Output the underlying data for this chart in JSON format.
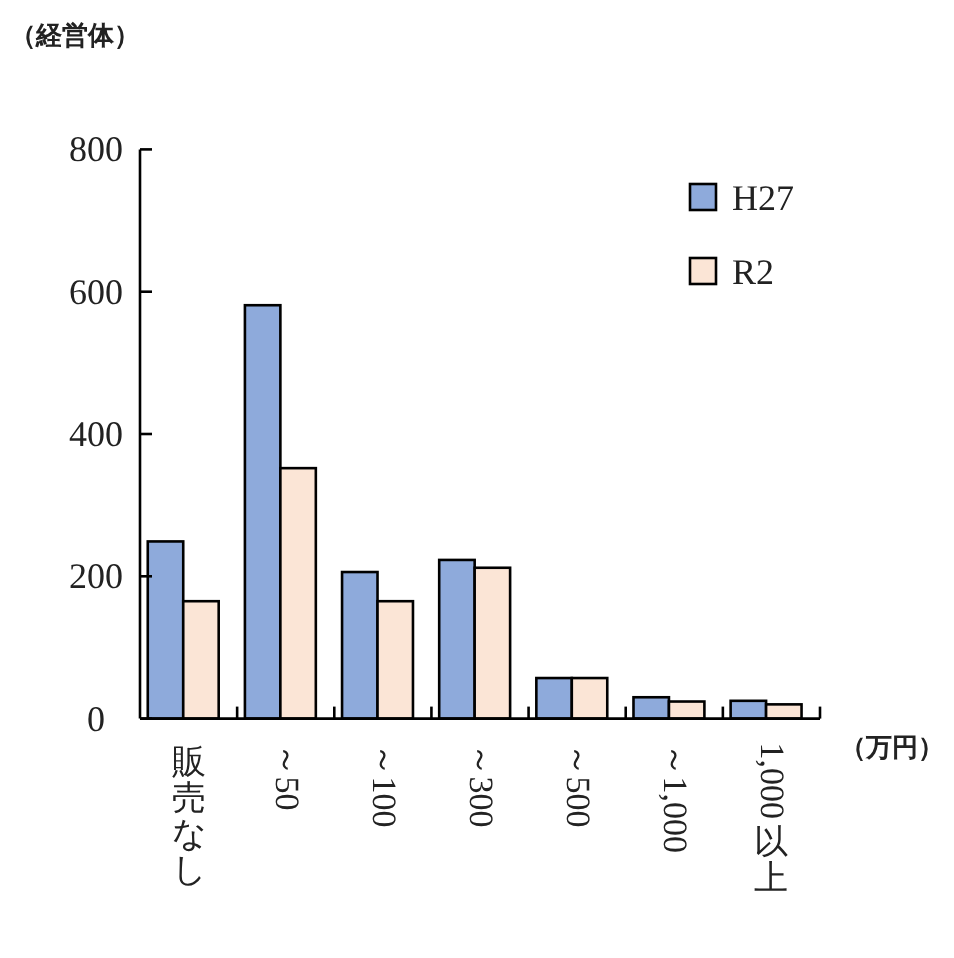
{
  "chart_data": {
    "type": "bar",
    "ylabel": "（経営体）",
    "xlabel": "（万円）",
    "categories": [
      "販売なし",
      "～50",
      "～100",
      "～300",
      "～500",
      "～1,000",
      "1,000 以上"
    ],
    "series": [
      {
        "name": "H27",
        "color": "#8eaadb",
        "values": [
          249,
          581,
          206,
          223,
          57,
          30,
          25
        ]
      },
      {
        "name": "R2",
        "color": "#fbe5d6",
        "values": [
          165,
          352,
          165,
          212,
          57,
          24,
          20
        ]
      }
    ],
    "ylim": [
      0,
      800
    ],
    "yticks": [
      0,
      200,
      400,
      600,
      800
    ],
    "legend": "top right"
  }
}
